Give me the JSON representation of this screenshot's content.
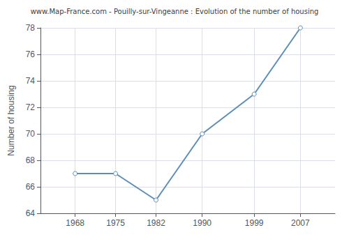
{
  "chart_data": {
    "type": "line",
    "title": "www.Map-France.com - Pouilly-sur-Vingeanne : Evolution of the number of housing",
    "ylabel": "Number of housing",
    "x": [
      1968,
      1975,
      1982,
      1990,
      1999,
      2007
    ],
    "values": [
      67,
      67,
      65,
      70,
      73,
      78
    ],
    "xlim": [
      1962,
      2013
    ],
    "xticks": [
      1968,
      1975,
      1982,
      1990,
      1999,
      2007
    ],
    "ylim": [
      64,
      78
    ],
    "yticks": [
      64,
      66,
      68,
      70,
      72,
      74,
      76,
      78
    ],
    "color": "#5b8db8",
    "marker": "circle",
    "grid": true
  }
}
